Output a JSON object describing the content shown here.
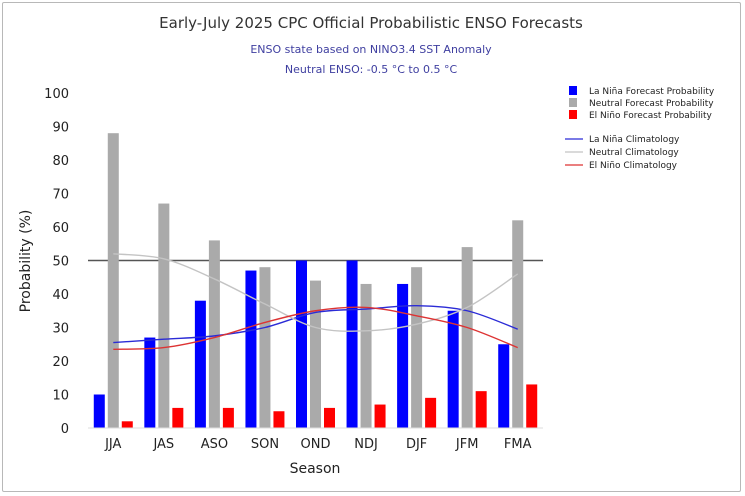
{
  "chart_data": {
    "type": "bar",
    "title": "Early-July 2025 CPC Official Probabilistic ENSO Forecasts",
    "subtitle": "ENSO state based on NINO3.4 SST Anomaly",
    "subtitle2": "Neutral ENSO: -0.5 °C to 0.5 °C",
    "xlabel": "Season",
    "ylabel": "Probability (%)",
    "ylim": [
      0,
      100
    ],
    "yticks": [
      0,
      10,
      20,
      30,
      40,
      50,
      60,
      70,
      80,
      90,
      100
    ],
    "reference_line": 50,
    "categories": [
      "JJA",
      "JAS",
      "ASO",
      "SON",
      "OND",
      "NDJ",
      "DJF",
      "JFM",
      "FMA"
    ],
    "series": [
      {
        "name": "La Niña Forecast Probability",
        "color": "#0000ff",
        "values": [
          10,
          27,
          38,
          47,
          50,
          50,
          43,
          35,
          25
        ]
      },
      {
        "name": "Neutral Forecast Probability",
        "color": "#aaaaaa",
        "values": [
          88,
          67,
          56,
          48,
          44,
          43,
          48,
          54,
          62
        ]
      },
      {
        "name": "El Niño Forecast Probability",
        "color": "#ff0000",
        "values": [
          2,
          6,
          6,
          5,
          6,
          7,
          9,
          11,
          13
        ]
      }
    ],
    "lines": [
      {
        "name": "La Niña Climatology",
        "color": "#2b2bd6",
        "values": [
          25.5,
          26.5,
          27.5,
          30,
          34.5,
          35.5,
          36.5,
          35,
          29.5
        ]
      },
      {
        "name": "Neutral Climatology",
        "color": "#c4c4c4",
        "values": [
          52,
          50.5,
          44.5,
          37,
          30,
          29,
          31,
          36,
          46
        ]
      },
      {
        "name": "El Niño Climatology",
        "color": "#dd3333",
        "values": [
          23.5,
          24,
          27,
          31.5,
          35,
          36,
          33.5,
          30,
          24
        ]
      }
    ]
  }
}
